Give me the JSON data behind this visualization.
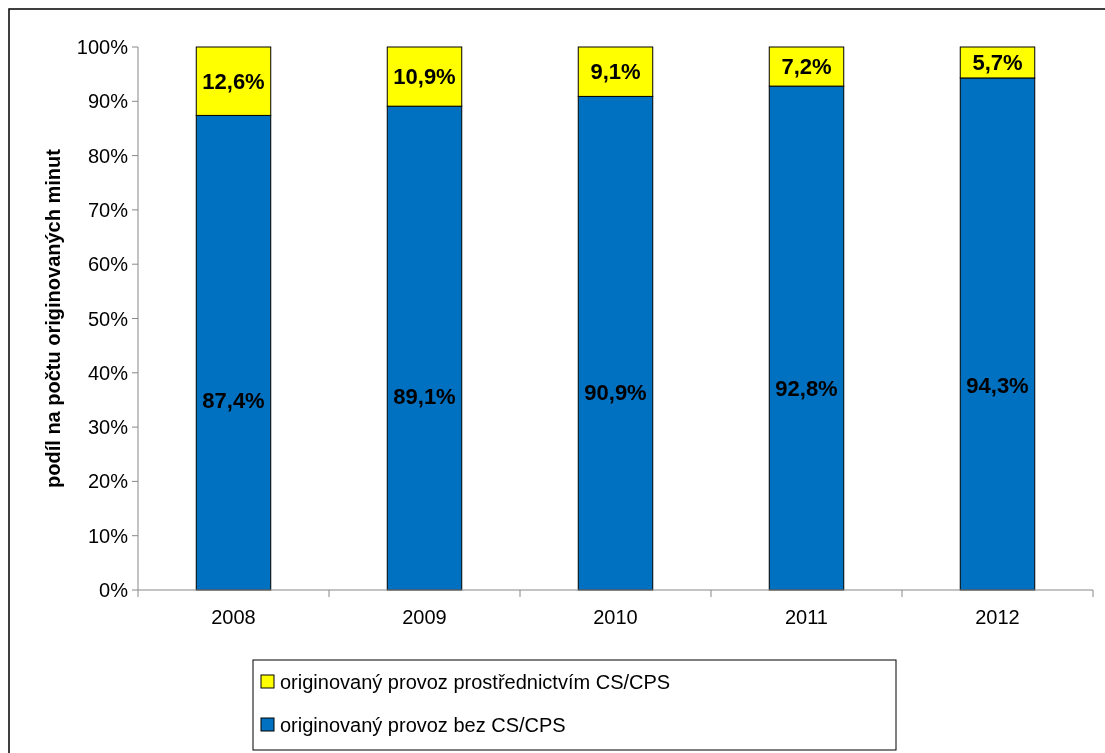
{
  "chart_data": {
    "type": "bar",
    "stacked": true,
    "ylabel": "podíl na počtu originovaných minut",
    "categories": [
      "2008",
      "2009",
      "2010",
      "2011",
      "2012"
    ],
    "series": [
      {
        "name": "originovaný provoz bez CS/CPS",
        "color": "#0070c0",
        "values": [
          87.4,
          89.1,
          90.9,
          92.8,
          94.3
        ],
        "value_labels": [
          "87,4%",
          "89,1%",
          "90,9%",
          "92,8%",
          "94,3%"
        ]
      },
      {
        "name": "originovaný provoz prostřednictvím CS/CPS",
        "color": "#ffff00",
        "values": [
          12.6,
          10.9,
          9.1,
          7.2,
          5.7
        ],
        "value_labels": [
          "12,6%",
          "10,9%",
          "9,1%",
          "7,2%",
          "5,7%"
        ]
      }
    ],
    "ylim": [
      0,
      100
    ],
    "yticks": [
      {
        "value": 0,
        "label": "0%"
      },
      {
        "value": 10,
        "label": "10%"
      },
      {
        "value": 20,
        "label": "20%"
      },
      {
        "value": 30,
        "label": "30%"
      },
      {
        "value": 40,
        "label": "40%"
      },
      {
        "value": 50,
        "label": "50%"
      },
      {
        "value": 60,
        "label": "60%"
      },
      {
        "value": 70,
        "label": "70%"
      },
      {
        "value": 80,
        "label": "80%"
      },
      {
        "value": 90,
        "label": "90%"
      },
      {
        "value": 100,
        "label": "100%"
      }
    ],
    "legend": "bottom"
  }
}
